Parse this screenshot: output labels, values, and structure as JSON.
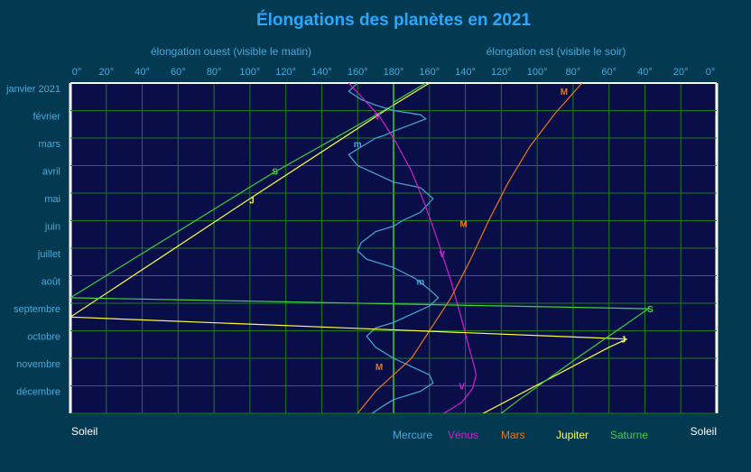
{
  "chart_data": {
    "type": "line",
    "title": "Élongations des planètes en 2021",
    "xlabel_left": "élongation ouest (visible le matin)",
    "xlabel_right": "élongation est (visible le soir)",
    "x_ticks": [
      "0°",
      "20°",
      "40°",
      "60°",
      "80°",
      "100°",
      "120°",
      "140°",
      "160°",
      "180°",
      "160°",
      "140°",
      "120°",
      "100°",
      "80°",
      "60°",
      "40°",
      "20°",
      "0°"
    ],
    "x_range": [
      -180,
      180
    ],
    "months": [
      "janvier 2021",
      "février",
      "mars",
      "avril",
      "mai",
      "juin",
      "juillet",
      "août",
      "septembre",
      "octobre",
      "novembre",
      "décembre"
    ],
    "y_range_months": [
      0,
      12
    ],
    "sun_label_left": "Soleil",
    "sun_label_right": "Soleil",
    "grid": true,
    "legend_position": "bottom",
    "series": [
      {
        "name": "Mercure",
        "marker": "m",
        "color": "#4aa8d8",
        "segments": [
          [
            [
              -20,
              0.0
            ],
            [
              -25,
              0.3
            ],
            [
              -18,
              0.6
            ],
            [
              -10,
              0.8
            ],
            [
              0,
              1.0
            ]
          ],
          [
            [
              0,
              1.0
            ],
            [
              15,
              1.15
            ],
            [
              18,
              1.3
            ],
            [
              10,
              1.5
            ],
            [
              0,
              1.75
            ]
          ],
          [
            [
              0,
              1.75
            ],
            [
              -5,
              1.9
            ],
            [
              -10,
              2.0
            ],
            [
              -25,
              2.6
            ],
            [
              -20,
              3.0
            ],
            [
              -10,
              3.3
            ],
            [
              0,
              3.6
            ]
          ],
          [
            [
              0,
              3.6
            ],
            [
              15,
              3.8
            ],
            [
              22,
              4.2
            ],
            [
              15,
              4.7
            ],
            [
              5,
              5.0
            ],
            [
              0,
              5.2
            ]
          ],
          [
            [
              0,
              5.2
            ],
            [
              -10,
              5.4
            ],
            [
              -18,
              5.8
            ],
            [
              -20,
              6.1
            ],
            [
              -15,
              6.4
            ],
            [
              -5,
              6.6
            ],
            [
              0,
              6.7
            ]
          ],
          [
            [
              0,
              6.7
            ],
            [
              12,
              7.1
            ],
            [
              20,
              7.5
            ],
            [
              25,
              7.8
            ],
            [
              20,
              8.1
            ],
            [
              10,
              8.4
            ],
            [
              0,
              8.7
            ]
          ],
          [
            [
              0,
              8.7
            ],
            [
              -10,
              8.9
            ],
            [
              -15,
              9.2
            ],
            [
              -10,
              9.6
            ],
            [
              0,
              10.0
            ]
          ],
          [
            [
              0,
              10.0
            ],
            [
              10,
              10.3
            ],
            [
              20,
              10.6
            ],
            [
              22,
              10.9
            ],
            [
              15,
              11.2
            ],
            [
              0,
              11.5
            ]
          ],
          [
            [
              0,
              11.5
            ],
            [
              -5,
              11.7
            ],
            [
              -12,
              12.0
            ]
          ]
        ],
        "label_points": [
          [
            -20,
            2.2
          ],
          [
            15,
            7.2
          ]
        ]
      },
      {
        "name": "Vénus",
        "marker": "V",
        "color": "#d020d0",
        "segments": [
          [
            [
              -25,
              0.0
            ],
            [
              -8,
              1.2
            ],
            [
              0,
              2.0
            ]
          ],
          [
            [
              0,
              2.0
            ],
            [
              10,
              3.2
            ],
            [
              18,
              4.5
            ],
            [
              25,
              5.8
            ],
            [
              32,
              7.2
            ],
            [
              38,
              8.6
            ],
            [
              42,
              9.6
            ],
            [
              45,
              10.3
            ],
            [
              46,
              10.6
            ],
            [
              44,
              11.1
            ],
            [
              38,
              11.6
            ],
            [
              28,
              12.0
            ]
          ]
        ],
        "label_points": [
          [
            -9,
            1.2
          ],
          [
            27,
            6.2
          ],
          [
            38,
            11.0
          ]
        ]
      },
      {
        "name": "Mars",
        "marker": "M",
        "color": "#e87818",
        "segments": [
          [
            [
              105,
              0.0
            ],
            [
              90,
              1.1
            ],
            [
              76,
              2.3
            ],
            [
              64,
              3.6
            ],
            [
              53,
              5.0
            ],
            [
              43,
              6.4
            ],
            [
              32,
              7.8
            ],
            [
              20,
              9.0
            ],
            [
              10,
              10.0
            ],
            [
              0,
              10.6
            ]
          ],
          [
            [
              0,
              10.6
            ],
            [
              -10,
              11.2
            ],
            [
              -20,
              12.0
            ]
          ]
        ],
        "label_points": [
          [
            95,
            0.3
          ],
          [
            39,
            5.1
          ],
          [
            -8,
            10.3
          ]
        ]
      },
      {
        "name": "Jupiter",
        "marker": "J",
        "color": "#ffff40",
        "segments": [
          [
            [
              0,
              0.8
            ],
            [
              -80,
              4.2
            ],
            [
              -180,
              8.5
            ],
            [
              130,
              9.3
            ],
            [
              120,
              9.6
            ],
            [
              50,
              12.0
            ]
          ]
        ],
        "label_points": [
          [
            -79,
            4.25
          ],
          [
            128,
            9.3
          ]
        ]
      },
      {
        "name": "Saturne",
        "marker": "S",
        "color": "#40d040",
        "segments": [
          [
            [
              0,
              0.8
            ],
            [
              -68,
              3.3
            ],
            [
              -180,
              7.8
            ],
            [
              142,
              8.2
            ],
            [
              102,
              10.0
            ],
            [
              70,
              11.5
            ],
            [
              60,
              12.0
            ]
          ]
        ],
        "label_points": [
          [
            -66,
            3.2
          ],
          [
            143,
            8.2
          ]
        ]
      }
    ],
    "early_lines": {
      "jupiter": [
        [
          20,
          0.0
        ],
        [
          0,
          0.8
        ]
      ],
      "saturne": [
        [
          18,
          0.0
        ],
        [
          0,
          0.7
        ]
      ]
    }
  }
}
